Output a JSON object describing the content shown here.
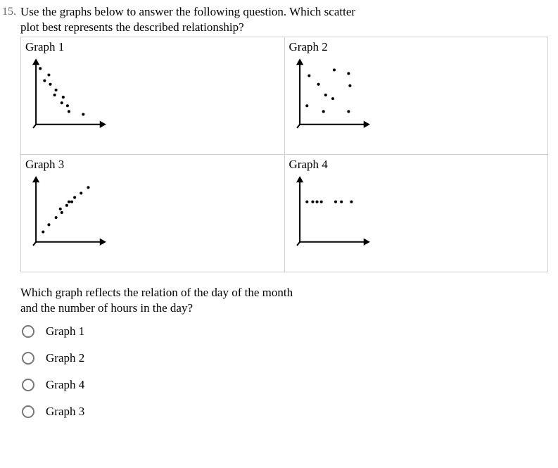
{
  "question": {
    "number": "15.",
    "prompt_l1": "Use the graphs below to answer the following question. Which scatter",
    "prompt_l2": "plot best represents the described relationship?",
    "followup_l1": "Which graph reflects the relation of the day of the month",
    "followup_l2": "and the number of hours in the day?"
  },
  "graphs": {
    "g1": {
      "label": "Graph 1"
    },
    "g2": {
      "label": "Graph 2"
    },
    "g3": {
      "label": "Graph 3"
    },
    "g4": {
      "label": "Graph 4"
    }
  },
  "scatter": {
    "g1": {
      "type": "scatter",
      "desc": "negative correlation, points along a descending cluster",
      "points": [
        [
          18,
          18
        ],
        [
          30,
          27
        ],
        [
          24,
          35
        ],
        [
          32,
          40
        ],
        [
          40,
          48
        ],
        [
          38,
          55
        ],
        [
          50,
          58
        ],
        [
          48,
          66
        ],
        [
          56,
          70
        ],
        [
          58,
          78
        ],
        [
          78,
          82
        ]
      ],
      "dot_color": "#000",
      "dot_r": 2.0
    },
    "g2": {
      "type": "scatter",
      "desc": "no correlation, random cloud",
      "points": [
        [
          25,
          28
        ],
        [
          60,
          20
        ],
        [
          80,
          25
        ],
        [
          38,
          40
        ],
        [
          82,
          42
        ],
        [
          48,
          55
        ],
        [
          22,
          70
        ],
        [
          58,
          60
        ],
        [
          45,
          78
        ],
        [
          80,
          78
        ]
      ],
      "dot_color": "#000",
      "dot_r": 2.0
    },
    "g3": {
      "type": "scatter",
      "desc": "positive correlation, ascending cluster",
      "points": [
        [
          22,
          82
        ],
        [
          30,
          72
        ],
        [
          40,
          62
        ],
        [
          48,
          55
        ],
        [
          46,
          50
        ],
        [
          58,
          40
        ],
        [
          55,
          45
        ],
        [
          66,
          34
        ],
        [
          62,
          40
        ],
        [
          75,
          28
        ],
        [
          85,
          20
        ]
      ],
      "dot_color": "#000",
      "dot_r": 2.0
    },
    "g4": {
      "type": "scatter",
      "desc": "constant y, horizontal row of points",
      "points": [
        [
          22,
          40
        ],
        [
          30,
          40
        ],
        [
          36,
          40
        ],
        [
          42,
          40
        ],
        [
          62,
          40
        ],
        [
          70,
          40
        ],
        [
          84,
          40
        ]
      ],
      "dot_color": "#000",
      "dot_r": 2.0
    },
    "axis": {
      "stroke": "#000",
      "stroke_w": 2,
      "ox": 12,
      "oy": 96,
      "ymax": 6,
      "xmax": 108,
      "arrow": 5
    }
  },
  "options": [
    {
      "label": "Graph 1"
    },
    {
      "label": "Graph 2"
    },
    {
      "label": "Graph 4"
    },
    {
      "label": "Graph 3"
    }
  ]
}
